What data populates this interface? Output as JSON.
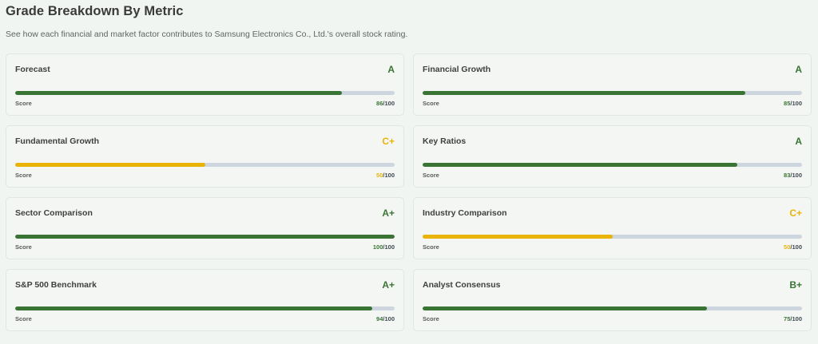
{
  "header": {
    "title": "Grade Breakdown By Metric",
    "subtitle": "See how each financial and market factor contributes to Samsung Electronics Co., Ltd.'s overall stock rating."
  },
  "colors": {
    "good": "#3a7434",
    "average": "#eab308",
    "track": "#cdd6df"
  },
  "score_label": "Score",
  "score_max": "/100",
  "metrics": [
    {
      "label": "Forecast",
      "grade": "A",
      "score": "86",
      "max": "/100",
      "percent": 86,
      "tone": "good"
    },
    {
      "label": "Financial Growth",
      "grade": "A",
      "score": "85",
      "max": "/100",
      "percent": 85,
      "tone": "good"
    },
    {
      "label": "Fundamental Growth",
      "grade": "C+",
      "score": "50",
      "max": "/100",
      "percent": 50,
      "tone": "average"
    },
    {
      "label": "Key Ratios",
      "grade": "A",
      "score": "83",
      "max": "/100",
      "percent": 83,
      "tone": "good"
    },
    {
      "label": "Sector Comparison",
      "grade": "A+",
      "score": "100",
      "max": "/100",
      "percent": 100,
      "tone": "good"
    },
    {
      "label": "Industry Comparison",
      "grade": "C+",
      "score": "50",
      "max": "/100",
      "percent": 50,
      "tone": "average"
    },
    {
      "label": "S&P 500 Benchmark",
      "grade": "A+",
      "score": "94",
      "max": "/100",
      "percent": 94,
      "tone": "good"
    },
    {
      "label": "Analyst Consensus",
      "grade": "B+",
      "score": "75",
      "max": "/100",
      "percent": 75,
      "tone": "good"
    }
  ]
}
